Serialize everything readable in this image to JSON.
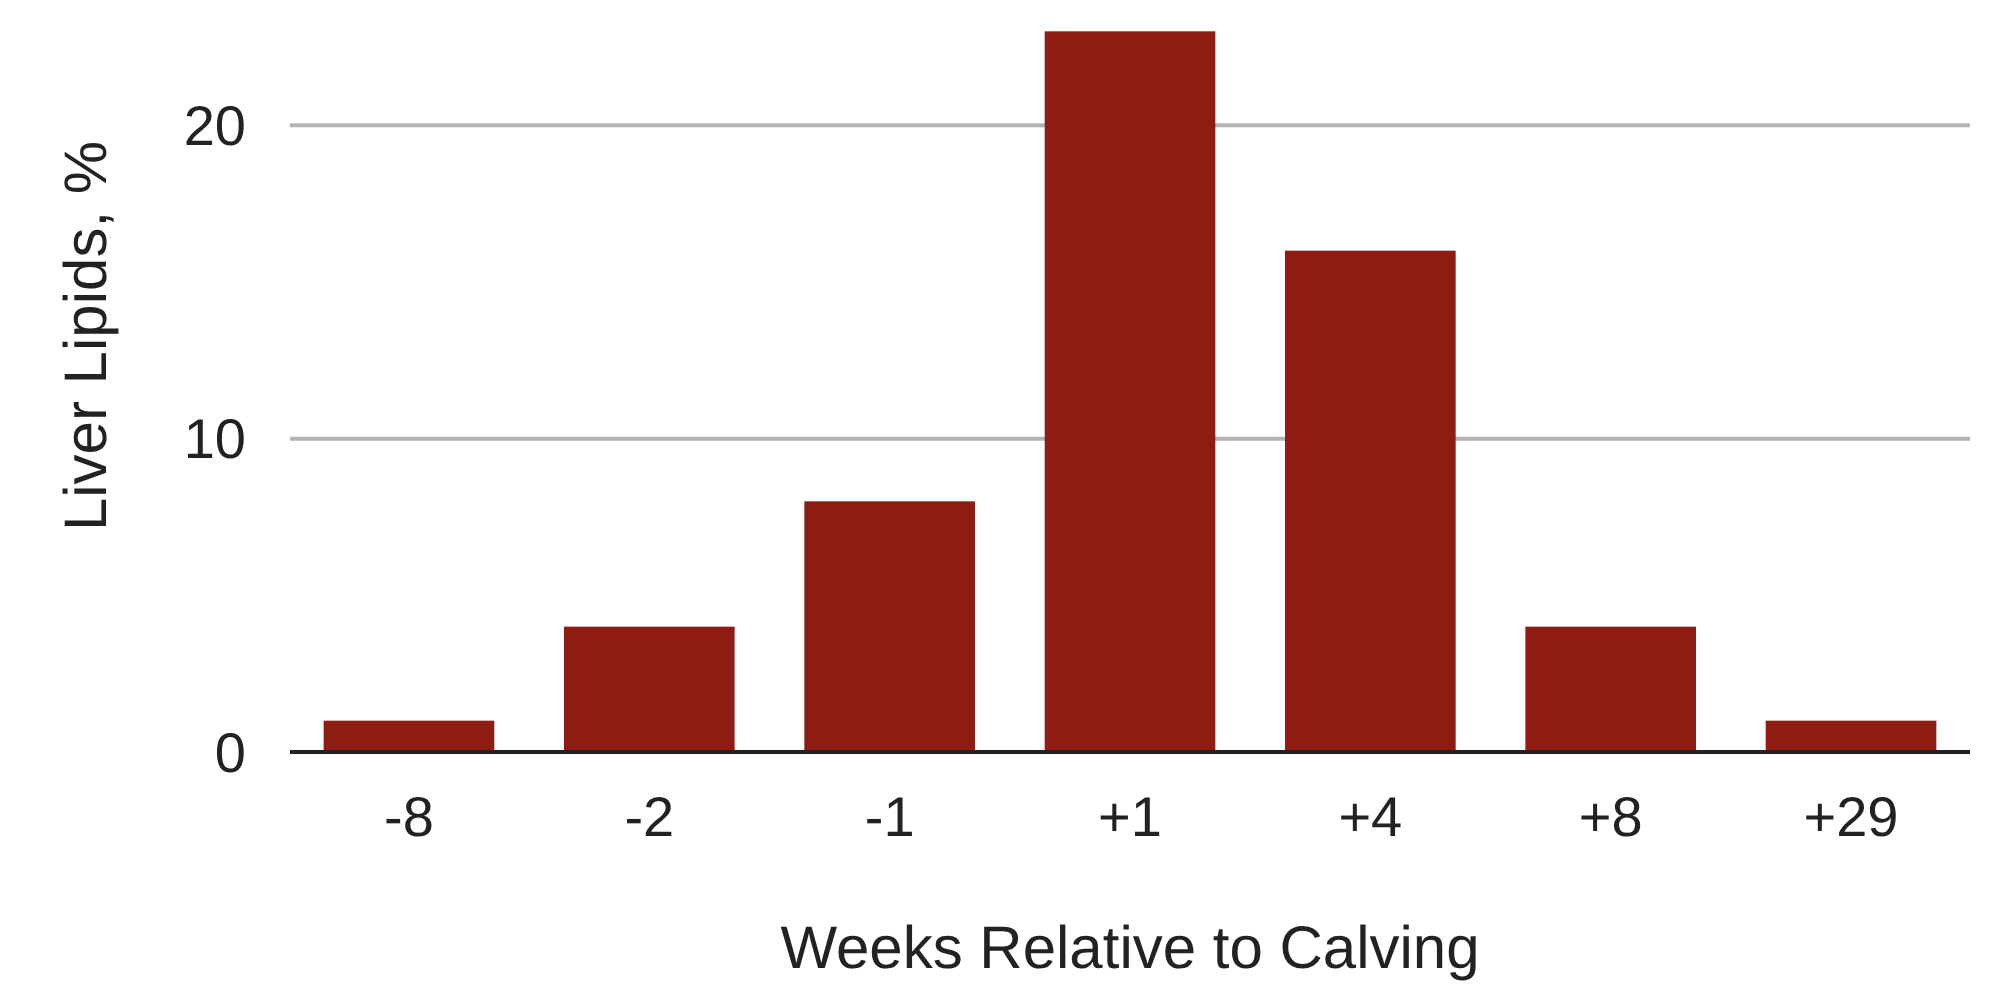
{
  "chart_data": {
    "type": "bar",
    "xlabel": "Weeks Relative to Calving",
    "ylabel": "Liver Lipids, %",
    "categories": [
      "-8",
      "-2",
      "-1",
      "+1",
      "+4",
      "+8",
      "+29"
    ],
    "values": [
      1,
      4,
      8,
      23,
      16,
      4,
      1
    ],
    "color": "#8e1c12",
    "ylim": [
      0,
      24
    ],
    "yticks": [
      0,
      10,
      20
    ],
    "grid": "y"
  }
}
